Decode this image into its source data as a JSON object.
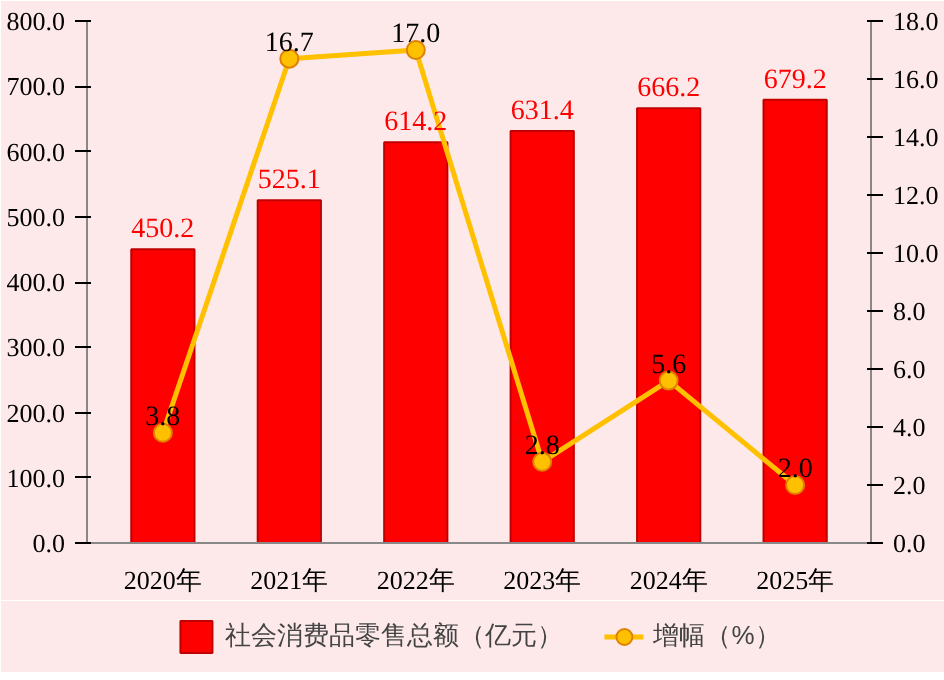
{
  "chart_data": {
    "type": "bar",
    "categories": [
      "2020年",
      "2021年",
      "2022年",
      "2023年",
      "2024年",
      "2025年"
    ],
    "series": [
      {
        "name": "社会消费品零售总额（亿元）",
        "color": "#ff0000",
        "values": [
          450.2,
          525.1,
          614.2,
          631.4,
          666.2,
          679.2
        ]
      },
      {
        "name": "增幅（%）",
        "color": "#ffc000",
        "type": "line",
        "axis": "y2",
        "marker": "circle",
        "values": [
          3.8,
          16.7,
          17.0,
          2.8,
          5.6,
          2.0
        ],
        "value_labels": [
          "3.8",
          "16.7",
          "17.0",
          "2.8",
          "5.6",
          "2.0"
        ]
      }
    ],
    "ylim": [
      0,
      800
    ],
    "yticks": [
      {
        "value": 0,
        "label": "0.0"
      },
      {
        "value": 100,
        "label": "100.0"
      },
      {
        "value": 200,
        "label": "200.0"
      },
      {
        "value": 300,
        "label": "300.0"
      },
      {
        "value": 400,
        "label": "400.0"
      },
      {
        "value": 500,
        "label": "500.0"
      },
      {
        "value": 600,
        "label": "600.0"
      },
      {
        "value": 700,
        "label": "700.0"
      },
      {
        "value": 800,
        "label": "800.0"
      }
    ],
    "y2lim": [
      0,
      18
    ],
    "y2ticks": [
      {
        "value": 0,
        "label": "0.0"
      },
      {
        "value": 2,
        "label": "2.0"
      },
      {
        "value": 4,
        "label": "4.0"
      },
      {
        "value": 6,
        "label": "6.0"
      },
      {
        "value": 8,
        "label": "8.0"
      },
      {
        "value": 10,
        "label": "10.0"
      },
      {
        "value": 12,
        "label": "12.0"
      },
      {
        "value": 14,
        "label": "14.0"
      },
      {
        "value": 16,
        "label": "16.0"
      },
      {
        "value": 18,
        "label": "18.0"
      }
    ],
    "data_labels": true,
    "grid": false,
    "legend": "bottom"
  }
}
